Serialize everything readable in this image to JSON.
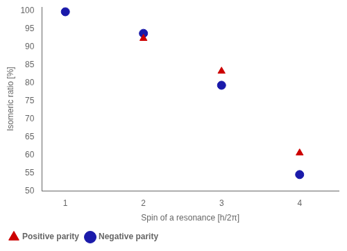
{
  "chart_data": {
    "type": "scatter",
    "xlabel": "Spin of a resonance [h/2π]",
    "ylabel": "Isomeric ratio [%]",
    "series": [
      {
        "name": "Positive parity",
        "color": "#cc0000",
        "marker": "triangle",
        "x": [
          2,
          3,
          4
        ],
        "values": [
          92.3,
          83.2,
          60.5
        ]
      },
      {
        "name": "Negative parity",
        "color": "#1a1aaa",
        "marker": "circle",
        "x": [
          1,
          2,
          3,
          4
        ],
        "values": [
          99.7,
          93.7,
          79.3,
          54.5
        ]
      }
    ],
    "xlim": [
      0.7,
      4.5
    ],
    "ylim": [
      50,
      101
    ],
    "xticks": [
      1,
      2,
      3,
      4
    ],
    "yticks": [
      50,
      55,
      60,
      65,
      70,
      75,
      80,
      85,
      90,
      95,
      100
    ],
    "grid": false,
    "legend": "lower left"
  }
}
